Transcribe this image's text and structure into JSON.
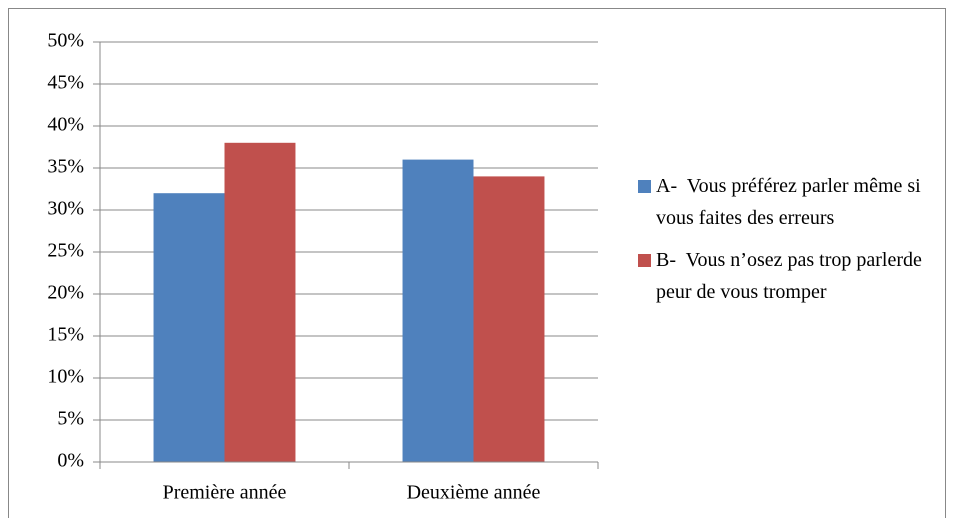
{
  "chart_data": {
    "type": "bar",
    "categories": [
      "Première année",
      "Deuxième année"
    ],
    "series": [
      {
        "name": "A-  Vous préférez parler même si vous faites des erreurs",
        "color": "#4f81bd",
        "values": [
          32,
          36
        ]
      },
      {
        "name": "B-  Vous n’osez pas trop parlerde peur de vous tromper",
        "color": "#c0504d",
        "values": [
          38,
          34
        ]
      }
    ],
    "ylim": [
      0,
      50
    ],
    "yticks": [
      {
        "value": 0,
        "label": "0%"
      },
      {
        "value": 5,
        "label": "5%"
      },
      {
        "value": 10,
        "label": "10%"
      },
      {
        "value": 15,
        "label": "15%"
      },
      {
        "value": 20,
        "label": "20%"
      },
      {
        "value": 25,
        "label": "25%"
      },
      {
        "value": 30,
        "label": "30%"
      },
      {
        "value": 35,
        "label": "35%"
      },
      {
        "value": 40,
        "label": "40%"
      },
      {
        "value": 45,
        "label": "45%"
      },
      {
        "value": 50,
        "label": "50%"
      }
    ],
    "grid": true,
    "legend": "right"
  }
}
